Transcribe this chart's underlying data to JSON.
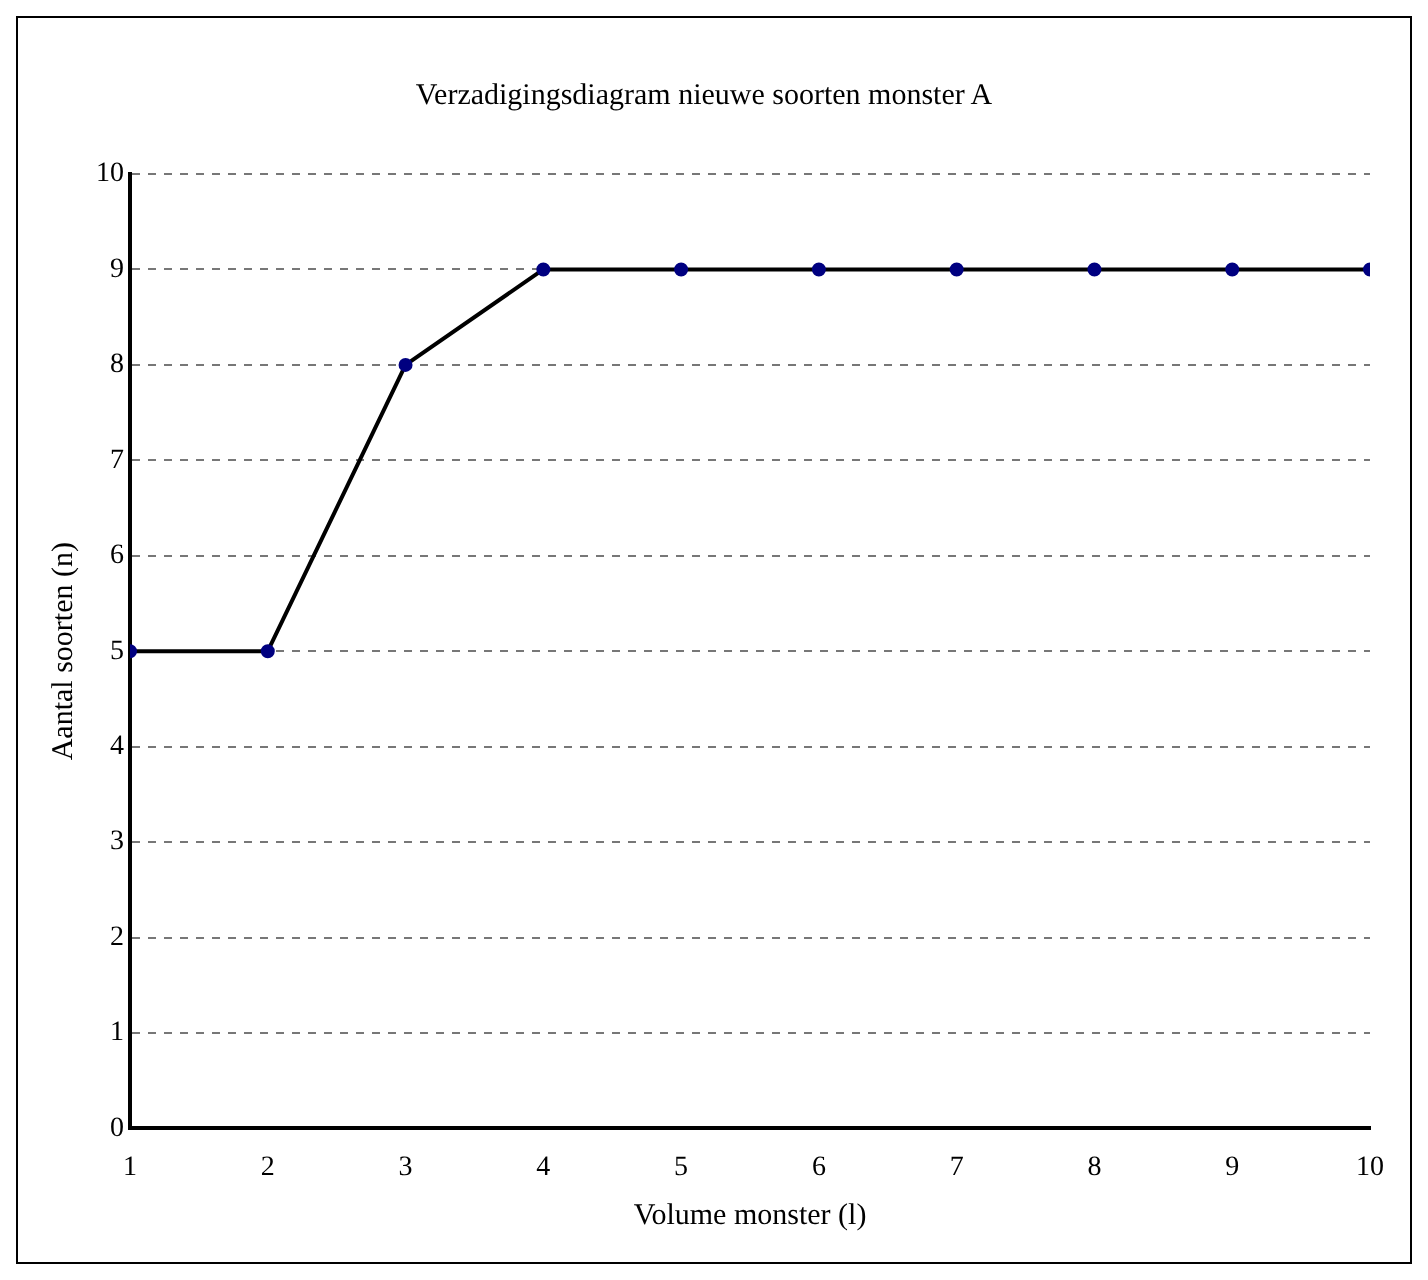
{
  "chart_data": {
    "type": "line",
    "title": "Verzadigingsdiagram nieuwe soorten monster A",
    "xlabel": "Volume monster (l)",
    "ylabel": "Aantal soorten (n)",
    "x": [
      1,
      2,
      3,
      4,
      5,
      6,
      7,
      8,
      9,
      10
    ],
    "series": [
      {
        "color": "#000000",
        "values": [
          5,
          5,
          8,
          9,
          9,
          9,
          9,
          9,
          9,
          9
        ]
      }
    ],
    "xlim": [
      1,
      10
    ],
    "xticks": [
      1,
      2,
      3,
      4,
      5,
      6,
      7,
      8,
      9,
      10
    ],
    "ylim": [
      0,
      10
    ],
    "yticks": [
      0,
      1,
      2,
      3,
      4,
      5,
      6,
      7,
      8,
      9,
      10
    ],
    "grid": "y",
    "legend": false,
    "marker": "circle",
    "line_style": "solid"
  }
}
